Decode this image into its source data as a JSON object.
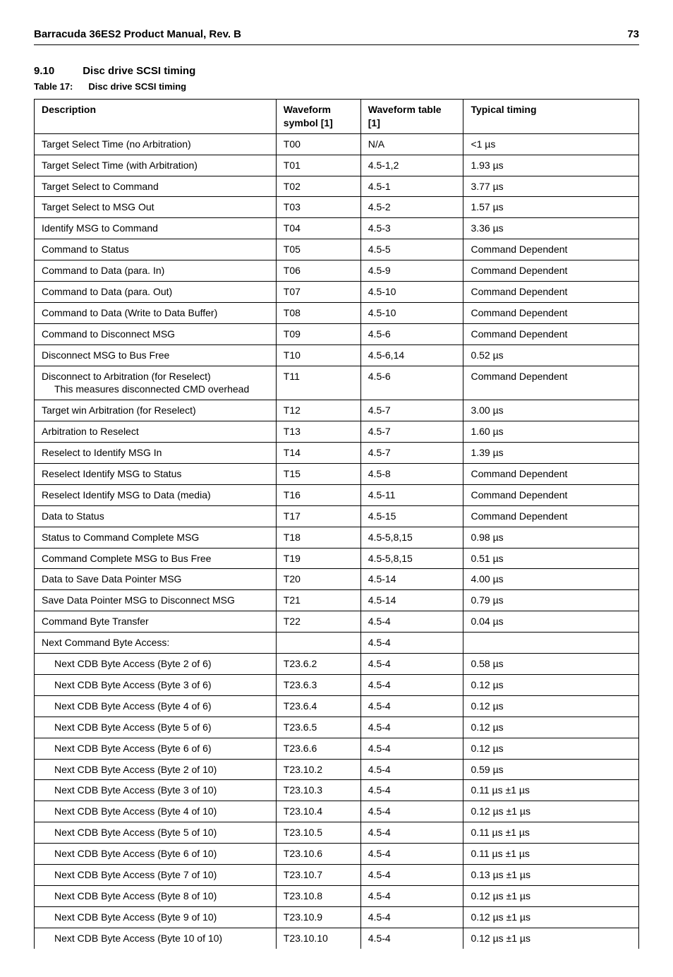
{
  "header": {
    "title": "Barracuda 36ES2 Product Manual, Rev. B",
    "page": "73"
  },
  "section": {
    "number": "9.10",
    "title": "Disc drive SCSI timing"
  },
  "table_caption": {
    "label": "Table 17:",
    "text": "Disc drive SCSI timing"
  },
  "table": {
    "columns": {
      "description": "Description",
      "symbol": "Waveform symbol [1]",
      "wtable": "Waveform table [1]",
      "timing": "Typical timing"
    },
    "rows": [
      {
        "desc": "Target Select Time (no Arbitration)",
        "symbol": "T00",
        "wtable": "N/A",
        "timing": "<1 µs"
      },
      {
        "desc": "Target Select Time (with Arbitration)",
        "symbol": "T01",
        "wtable": "4.5-1,2",
        "timing": "1.93 µs"
      },
      {
        "desc": "Target Select to Command",
        "symbol": "T02",
        "wtable": "4.5-1",
        "timing": "3.77 µs"
      },
      {
        "desc": "Target Select to MSG Out",
        "symbol": "T03",
        "wtable": "4.5-2",
        "timing": "1.57 µs"
      },
      {
        "desc": "Identify MSG to Command",
        "symbol": "T04",
        "wtable": "4.5-3",
        "timing": "3.36 µs"
      },
      {
        "desc": "Command to Status",
        "symbol": "T05",
        "wtable": "4.5-5",
        "timing": "Command Dependent"
      },
      {
        "desc": "Command to Data (para. In)",
        "symbol": "T06",
        "wtable": "4.5-9",
        "timing": "Command Dependent"
      },
      {
        "desc": "Command to Data (para. Out)",
        "symbol": "T07",
        "wtable": "4.5-10",
        "timing": "Command Dependent"
      },
      {
        "desc": "Command to Data (Write to Data Buffer)",
        "symbol": "T08",
        "wtable": "4.5-10",
        "timing": "Command Dependent"
      },
      {
        "desc": "Command to Disconnect MSG",
        "symbol": "T09",
        "wtable": "4.5-6",
        "timing": "Command Dependent"
      },
      {
        "desc": "Disconnect MSG to Bus Free",
        "symbol": "T10",
        "wtable": "4.5-6,14",
        "timing": "0.52 µs"
      },
      {
        "desc": "Disconnect to Arbitration (for Reselect)",
        "desc_sub": "This measures disconnected CMD overhead",
        "symbol": "T11",
        "wtable": "4.5-6",
        "timing": "Command Dependent"
      },
      {
        "desc": "Target win Arbitration (for Reselect)",
        "symbol": "T12",
        "wtable": "4.5-7",
        "timing": "3.00 µs"
      },
      {
        "desc": "Arbitration to Reselect",
        "symbol": "T13",
        "wtable": "4.5-7",
        "timing": "1.60 µs"
      },
      {
        "desc": "Reselect to Identify MSG In",
        "symbol": "T14",
        "wtable": "4.5-7",
        "timing": "1.39 µs"
      },
      {
        "desc": "Reselect Identify MSG to Status",
        "symbol": "T15",
        "wtable": "4.5-8",
        "timing": "Command Dependent"
      },
      {
        "desc": "Reselect Identify MSG to Data (media)",
        "symbol": "T16",
        "wtable": "4.5-11",
        "timing": "Command Dependent"
      },
      {
        "desc": "Data to Status",
        "symbol": "T17",
        "wtable": "4.5-15",
        "timing": "Command Dependent"
      },
      {
        "desc": "Status to Command Complete MSG",
        "symbol": "T18",
        "wtable": "4.5-5,8,15",
        "timing": "0.98 µs"
      },
      {
        "desc": "Command Complete MSG to Bus Free",
        "symbol": "T19",
        "wtable": "4.5-5,8,15",
        "timing": "0.51 µs"
      },
      {
        "desc": "Data to Save Data Pointer MSG",
        "symbol": "T20",
        "wtable": "4.5-14",
        "timing": "4.00 µs"
      },
      {
        "desc": "Save Data Pointer MSG to Disconnect MSG",
        "symbol": "T21",
        "wtable": "4.5-14",
        "timing": "0.79 µs"
      },
      {
        "desc": "Command Byte Transfer",
        "symbol": "T22",
        "wtable": "4.5-4",
        "timing": "0.04 µs"
      },
      {
        "desc": "Next Command Byte Access:",
        "symbol": "",
        "wtable": "4.5-4",
        "timing": ""
      },
      {
        "desc": "Next CDB Byte Access (Byte 2 of 6)",
        "indent": true,
        "symbol": "T23.6.2",
        "wtable": "4.5-4",
        "timing": "0.58 µs"
      },
      {
        "desc": "Next CDB Byte Access (Byte 3 of 6)",
        "indent": true,
        "symbol": "T23.6.3",
        "wtable": "4.5-4",
        "timing": "0.12 µs"
      },
      {
        "desc": "Next CDB Byte Access (Byte 4 of 6)",
        "indent": true,
        "symbol": "T23.6.4",
        "wtable": "4.5-4",
        "timing": "0.12 µs"
      },
      {
        "desc": "Next CDB Byte Access (Byte 5 of 6)",
        "indent": true,
        "symbol": "T23.6.5",
        "wtable": "4.5-4",
        "timing": "0.12 µs"
      },
      {
        "desc": "Next CDB Byte Access (Byte 6 of 6)",
        "indent": true,
        "symbol": "T23.6.6",
        "wtable": "4.5-4",
        "timing": "0.12 µs"
      },
      {
        "desc": "Next CDB Byte Access (Byte 2 of 10)",
        "indent": true,
        "symbol": "T23.10.2",
        "wtable": "4.5-4",
        "timing": "0.59 µs"
      },
      {
        "desc": "Next CDB Byte Access (Byte 3 of 10)",
        "indent": true,
        "symbol": "T23.10.3",
        "wtable": "4.5-4",
        "timing": "0.11 µs ±1 µs"
      },
      {
        "desc": "Next CDB Byte Access (Byte 4 of 10)",
        "indent": true,
        "symbol": "T23.10.4",
        "wtable": "4.5-4",
        "timing": "0.12 µs ±1 µs"
      },
      {
        "desc": "Next CDB Byte Access (Byte 5 of 10)",
        "indent": true,
        "symbol": "T23.10.5",
        "wtable": "4.5-4",
        "timing": "0.11 µs ±1 µs"
      },
      {
        "desc": "Next CDB Byte Access (Byte 6 of 10)",
        "indent": true,
        "symbol": "T23.10.6",
        "wtable": "4.5-4",
        "timing": "0.11 µs ±1 µs"
      },
      {
        "desc": "Next CDB Byte Access (Byte 7 of 10)",
        "indent": true,
        "symbol": "T23.10.7",
        "wtable": "4.5-4",
        "timing": "0.13 µs ±1 µs"
      },
      {
        "desc": "Next CDB Byte Access (Byte 8 of 10)",
        "indent": true,
        "symbol": "T23.10.8",
        "wtable": "4.5-4",
        "timing": "0.12 µs ±1 µs"
      },
      {
        "desc": "Next CDB Byte Access (Byte 9 of 10)",
        "indent": true,
        "symbol": "T23.10.9",
        "wtable": "4.5-4",
        "timing": "0.12 µs ±1 µs"
      },
      {
        "desc": "Next CDB Byte Access (Byte 10 of 10)",
        "indent": true,
        "symbol": "T23.10.10",
        "wtable": "4.5-4",
        "timing": "0.12 µs ±1 µs",
        "last": true
      }
    ]
  }
}
